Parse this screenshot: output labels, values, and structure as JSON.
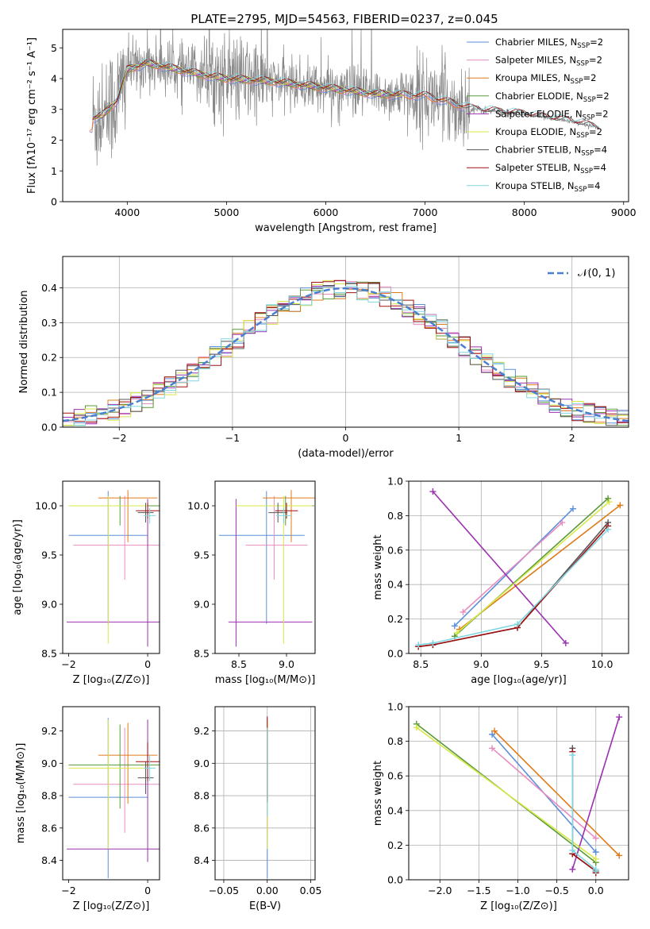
{
  "title": "PLATE=2795, MJD=54563, FIBERID=0237, z=0.045",
  "colors": {
    "chabrier_miles": "#5b8fd9",
    "salpeter_miles": "#e98bbf",
    "kroupa_miles": "#e07b1a",
    "chabrier_elodie": "#5a9a3a",
    "salpeter_elodie": "#9b30b0",
    "kroupa_elodie": "#d8e84a",
    "chabrier_stelib": "#555555",
    "salpeter_stelib": "#a01010",
    "kroupa_stelib": "#7fd6e0",
    "data": "#888888",
    "grid": "#b0b0b0",
    "normal": "#4a7fcf"
  },
  "chart_data": [
    {
      "id": "spectrum",
      "type": "line",
      "xlabel": "wavelength [Angstrom, rest frame]",
      "ylabel": "Flux [fλ10⁻¹⁷ erg cm⁻² s⁻¹ A⁻¹]",
      "xlim": [
        3350,
        9050
      ],
      "ylim": [
        0,
        5.6
      ],
      "xticks": [
        4000,
        5000,
        6000,
        7000,
        8000,
        9000
      ],
      "yticks": [
        0,
        1,
        2,
        3,
        4,
        5
      ],
      "grid": false,
      "legend_position": "top-right",
      "legend": [
        {
          "label": "Chabrier MILES, N",
          "sub": "SSP",
          "suffix": "=2"
        },
        {
          "label": "Salpeter MILES, N",
          "sub": "SSP",
          "suffix": "=2"
        },
        {
          "label": "Kroupa MILES, N",
          "sub": "SSP",
          "suffix": "=2"
        },
        {
          "label": "Chabrier ELODIE, N",
          "sub": "SSP",
          "suffix": "=2"
        },
        {
          "label": "Salpeter ELODIE, N",
          "sub": "SSP",
          "suffix": "=2"
        },
        {
          "label": "Kroupa ELODIE, N",
          "sub": "SSP",
          "suffix": "=2"
        },
        {
          "label": "Chabrier STELIB, N",
          "sub": "SSP",
          "suffix": "=4"
        },
        {
          "label": "Salpeter STELIB, N",
          "sub": "SSP",
          "suffix": "=4"
        },
        {
          "label": "Kroupa STELIB, N",
          "sub": "SSP",
          "suffix": "=4"
        }
      ],
      "data_range": [
        3650,
        8750
      ],
      "continuum": [
        [
          3650,
          2.7
        ],
        [
          3750,
          2.8
        ],
        [
          3900,
          3.3
        ],
        [
          4000,
          4.3
        ],
        [
          4200,
          4.5
        ],
        [
          4500,
          4.3
        ],
        [
          4800,
          4.1
        ],
        [
          5000,
          4.0
        ],
        [
          5500,
          3.9
        ],
        [
          6000,
          3.7
        ],
        [
          6500,
          3.5
        ],
        [
          7000,
          3.45
        ],
        [
          7500,
          3.0
        ],
        [
          8000,
          2.85
        ],
        [
          8500,
          2.6
        ],
        [
          8750,
          2.4
        ]
      ]
    },
    {
      "id": "residuals",
      "type": "step",
      "xlabel": "(data-model)/error",
      "ylabel": "Normed distribution",
      "xlim": [
        -2.5,
        2.5
      ],
      "ylim": [
        0,
        0.49
      ],
      "xticks": [
        -2,
        -1,
        0,
        1,
        2
      ],
      "yticks": [
        0.0,
        0.1,
        0.2,
        0.3,
        0.4
      ],
      "grid": true,
      "legend_position": "top-right",
      "legend_label": "𝒩(0, 1)"
    },
    {
      "id": "age_vs_z",
      "type": "errorbar",
      "xlabel": "Z [log₁₀(Z/Z⊙)]",
      "ylabel": "age  [log₁₀(age/yr)]",
      "xlim": [
        -2.15,
        0.3
      ],
      "ylim": [
        8.5,
        10.25
      ],
      "xticks": [
        -2,
        0
      ],
      "yticks": [
        8.5,
        9.0,
        9.5,
        10.0
      ],
      "grid": false,
      "points": [
        {
          "model": "chabrier_miles",
          "x": -1.0,
          "xerr": [
            1.0,
            1.0
          ],
          "y": 9.7,
          "yerr": [
            0.9,
            0.45
          ]
        },
        {
          "model": "salpeter_miles",
          "x": -0.58,
          "xerr": [
            1.3,
            1.3
          ],
          "y": 9.6,
          "yerr": [
            0.35,
            0.5
          ]
        },
        {
          "model": "kroupa_miles",
          "x": -0.5,
          "xerr": [
            0.75,
            0.75
          ],
          "y": 10.08,
          "yerr": [
            0.45,
            0.08
          ]
        },
        {
          "model": "chabrier_elodie",
          "x": -0.7,
          "xerr": [
            1.3,
            1.3
          ],
          "y": 10.0,
          "yerr": [
            0.2,
            0.1
          ]
        },
        {
          "model": "salpeter_elodie",
          "x": 0.0,
          "xerr": [
            2.05,
            0.3
          ],
          "y": 8.82,
          "yerr": [
            0.25,
            1.25
          ]
        },
        {
          "model": "kroupa_elodie",
          "x": -1.0,
          "xerr": [
            1.0,
            1.0
          ],
          "y": 10.0,
          "yerr": [
            1.4,
            0.1
          ]
        },
        {
          "model": "chabrier_stelib",
          "x": -0.05,
          "xerr": [
            0.2,
            0.2
          ],
          "y": 9.93,
          "yerr": [
            0.1,
            0.1
          ]
        },
        {
          "model": "salpeter_stelib",
          "x": 0.0,
          "xerr": [
            0.3,
            0.3
          ],
          "y": 9.95,
          "yerr": [
            0.08,
            0.08
          ]
        },
        {
          "model": "kroupa_stelib",
          "x": 0.05,
          "xerr": [
            0.15,
            0.15
          ],
          "y": 9.9,
          "yerr": [
            0.08,
            0.08
          ]
        }
      ]
    },
    {
      "id": "age_vs_mass",
      "type": "errorbar",
      "xlabel": "mass [log₁₀(M/M⊙)]",
      "ylabel": "",
      "xlim": [
        8.25,
        9.3
      ],
      "ylim": [
        8.5,
        10.25
      ],
      "xticks": [
        8.5,
        9.0
      ],
      "yticks": [
        8.5,
        9.0,
        9.5,
        10.0
      ],
      "grid": false,
      "points": [
        {
          "model": "chabrier_miles",
          "x": 8.79,
          "xerr": [
            0.5,
            0.4
          ],
          "y": 9.7,
          "yerr": [
            0.9,
            0.45
          ]
        },
        {
          "model": "salpeter_miles",
          "x": 8.87,
          "xerr": [
            0.3,
            0.35
          ],
          "y": 9.6,
          "yerr": [
            0.35,
            0.5
          ]
        },
        {
          "model": "kroupa_miles",
          "x": 9.05,
          "xerr": [
            0.3,
            0.25
          ],
          "y": 10.08,
          "yerr": [
            0.45,
            0.08
          ]
        },
        {
          "model": "chabrier_elodie",
          "x": 8.99,
          "xerr": [
            0.5,
            0.3
          ],
          "y": 10.0,
          "yerr": [
            0.2,
            0.1
          ]
        },
        {
          "model": "salpeter_elodie",
          "x": 8.47,
          "xerr": [
            0.08,
            0.8
          ],
          "y": 8.82,
          "yerr": [
            0.25,
            1.25
          ]
        },
        {
          "model": "kroupa_elodie",
          "x": 8.97,
          "xerr": [
            0.5,
            0.3
          ],
          "y": 10.0,
          "yerr": [
            1.4,
            0.1
          ]
        },
        {
          "model": "chabrier_stelib",
          "x": 8.91,
          "xerr": [
            0.1,
            0.1
          ],
          "y": 9.93,
          "yerr": [
            0.1,
            0.1
          ]
        },
        {
          "model": "salpeter_stelib",
          "x": 9.0,
          "xerr": [
            0.12,
            0.12
          ],
          "y": 9.95,
          "yerr": [
            0.08,
            0.08
          ]
        },
        {
          "model": "kroupa_stelib",
          "x": 8.97,
          "xerr": [
            0.08,
            0.08
          ],
          "y": 9.9,
          "yerr": [
            0.08,
            0.08
          ]
        }
      ]
    },
    {
      "id": "weight_vs_age",
      "type": "line",
      "xlabel": "age  [log₁₀(age/yr)]",
      "ylabel": "mass weight",
      "xlim": [
        8.4,
        10.22
      ],
      "ylim": [
        0,
        1.0
      ],
      "xticks": [
        8.5,
        9.0,
        9.5,
        10.0
      ],
      "yticks": [
        0.0,
        0.2,
        0.4,
        0.6,
        0.8,
        1.0
      ],
      "grid": true,
      "series": [
        {
          "model": "chabrier_miles",
          "x": [
            8.78,
            9.76
          ],
          "y": [
            0.16,
            0.84
          ]
        },
        {
          "model": "salpeter_miles",
          "x": [
            8.85,
            9.67
          ],
          "y": [
            0.24,
            0.76
          ]
        },
        {
          "model": "kroupa_miles",
          "x": [
            8.82,
            10.15
          ],
          "y": [
            0.14,
            0.86
          ]
        },
        {
          "model": "chabrier_elodie",
          "x": [
            8.78,
            10.05
          ],
          "y": [
            0.1,
            0.9
          ]
        },
        {
          "model": "salpeter_elodie",
          "x": [
            8.6,
            9.7
          ],
          "y": [
            0.94,
            0.06
          ]
        },
        {
          "model": "kroupa_elodie",
          "x": [
            8.8,
            10.06
          ],
          "y": [
            0.12,
            0.88
          ]
        },
        {
          "model": "chabrier_stelib",
          "x": [
            8.48,
            8.6,
            9.3,
            10.05
          ],
          "y": [
            0.04,
            0.05,
            0.15,
            0.76
          ]
        },
        {
          "model": "salpeter_stelib",
          "x": [
            8.48,
            8.6,
            9.3,
            10.05
          ],
          "y": [
            0.04,
            0.05,
            0.15,
            0.74
          ]
        },
        {
          "model": "kroupa_stelib",
          "x": [
            8.48,
            8.6,
            9.3,
            10.05
          ],
          "y": [
            0.05,
            0.06,
            0.17,
            0.72
          ]
        }
      ]
    },
    {
      "id": "mass_vs_z",
      "type": "errorbar",
      "xlabel": "Z [log₁₀(Z/Z⊙)]",
      "ylabel": "mass [log₁₀(M/M⊙)]",
      "xlim": [
        -2.15,
        0.3
      ],
      "ylim": [
        8.28,
        9.35
      ],
      "xticks": [
        -2,
        0
      ],
      "yticks": [
        8.4,
        8.6,
        8.8,
        9.0,
        9.2
      ],
      "grid": false,
      "points": [
        {
          "model": "chabrier_miles",
          "x": -1.0,
          "xerr": [
            1.0,
            1.0
          ],
          "y": 8.79,
          "yerr": [
            0.5,
            0.49
          ]
        },
        {
          "model": "salpeter_miles",
          "x": -0.58,
          "xerr": [
            1.3,
            1.3
          ],
          "y": 8.87,
          "yerr": [
            0.3,
            0.35
          ]
        },
        {
          "model": "kroupa_miles",
          "x": -0.5,
          "xerr": [
            0.75,
            0.75
          ],
          "y": 9.05,
          "yerr": [
            0.3,
            0.2
          ]
        },
        {
          "model": "chabrier_elodie",
          "x": -0.7,
          "xerr": [
            1.3,
            1.3
          ],
          "y": 8.99,
          "yerr": [
            0.27,
            0.25
          ]
        },
        {
          "model": "salpeter_elodie",
          "x": 0.0,
          "xerr": [
            2.05,
            0.3
          ],
          "y": 8.47,
          "yerr": [
            0.08,
            0.8
          ]
        },
        {
          "model": "kroupa_elodie",
          "x": -1.0,
          "xerr": [
            1.0,
            1.0
          ],
          "y": 8.97,
          "yerr": [
            0.5,
            0.3
          ]
        },
        {
          "model": "chabrier_stelib",
          "x": -0.05,
          "xerr": [
            0.2,
            0.2
          ],
          "y": 8.91,
          "yerr": [
            0.1,
            0.1
          ]
        },
        {
          "model": "salpeter_stelib",
          "x": 0.0,
          "xerr": [
            0.3,
            0.3
          ],
          "y": 9.01,
          "yerr": [
            0.12,
            0.12
          ]
        },
        {
          "model": "kroupa_stelib",
          "x": 0.05,
          "xerr": [
            0.15,
            0.15
          ],
          "y": 8.97,
          "yerr": [
            0.08,
            0.08
          ]
        }
      ]
    },
    {
      "id": "mass_vs_ebv",
      "type": "errorbar",
      "xlabel": "E(B-V)",
      "ylabel": "",
      "xlim": [
        -0.06,
        0.055
      ],
      "ylim": [
        8.28,
        9.35
      ],
      "xticks": [
        -0.05,
        0.0,
        0.05
      ],
      "yticks": [
        8.4,
        8.6,
        8.8,
        9.0,
        9.2
      ],
      "grid": true,
      "points": [
        {
          "model": "chabrier_miles",
          "x": 0.0,
          "xerr": [
            0,
            0
          ],
          "y": 8.79,
          "yerr": [
            0.5,
            0.49
          ]
        },
        {
          "model": "salpeter_miles",
          "x": 0.0,
          "xerr": [
            0,
            0
          ],
          "y": 8.87,
          "yerr": [
            0.3,
            0.35
          ]
        },
        {
          "model": "kroupa_miles",
          "x": 0.0,
          "xerr": [
            0,
            0
          ],
          "y": 9.05,
          "yerr": [
            0.3,
            0.2
          ]
        },
        {
          "model": "kroupa_elodie",
          "x": 0.0,
          "xerr": [
            0,
            0
          ],
          "y": 8.97,
          "yerr": [
            0.5,
            0.3
          ]
        },
        {
          "model": "salpeter_stelib",
          "x": 0.0,
          "xerr": [
            0,
            0
          ],
          "y": 9.01,
          "yerr": [
            0.25,
            0.28
          ]
        },
        {
          "model": "kroupa_stelib",
          "x": 0.0,
          "xerr": [
            0,
            0
          ],
          "y": 8.97,
          "yerr": [
            0.3,
            0.25
          ]
        }
      ]
    },
    {
      "id": "weight_vs_z",
      "type": "line",
      "xlabel": "Z [log₁₀(Z/Z⊙)]",
      "ylabel": "mass weight",
      "xlim": [
        -2.4,
        0.42
      ],
      "ylim": [
        0,
        1.0
      ],
      "xticks": [
        -2.0,
        -1.5,
        -1.0,
        -0.5,
        0.0
      ],
      "yticks": [
        0.0,
        0.2,
        0.4,
        0.6,
        0.8,
        1.0
      ],
      "grid": true,
      "series": [
        {
          "model": "chabrier_miles",
          "x": [
            -1.33,
            0.0
          ],
          "y": [
            0.84,
            0.16
          ]
        },
        {
          "model": "salpeter_miles",
          "x": [
            -1.33,
            0.0
          ],
          "y": [
            0.76,
            0.24
          ]
        },
        {
          "model": "kroupa_miles",
          "x": [
            -1.3,
            0.3
          ],
          "y": [
            0.86,
            0.14
          ]
        },
        {
          "model": "chabrier_elodie",
          "x": [
            -2.3,
            0.0
          ],
          "y": [
            0.9,
            0.1
          ]
        },
        {
          "model": "salpeter_elodie",
          "x": [
            -0.3,
            0.3
          ],
          "y": [
            0.06,
            0.94
          ]
        },
        {
          "model": "kroupa_elodie",
          "x": [
            -2.3,
            0.0
          ],
          "y": [
            0.88,
            0.12
          ]
        },
        {
          "model": "chabrier_stelib",
          "x": [
            -0.3,
            -0.3,
            0.0,
            0.0
          ],
          "y": [
            0.76,
            0.15,
            0.05,
            0.04
          ]
        },
        {
          "model": "salpeter_stelib",
          "x": [
            -0.3,
            -0.3,
            0.0,
            0.0
          ],
          "y": [
            0.74,
            0.15,
            0.05,
            0.04
          ]
        },
        {
          "model": "kroupa_stelib",
          "x": [
            -0.3,
            -0.3,
            0.0,
            0.0
          ],
          "y": [
            0.72,
            0.17,
            0.06,
            0.05
          ]
        }
      ]
    }
  ]
}
